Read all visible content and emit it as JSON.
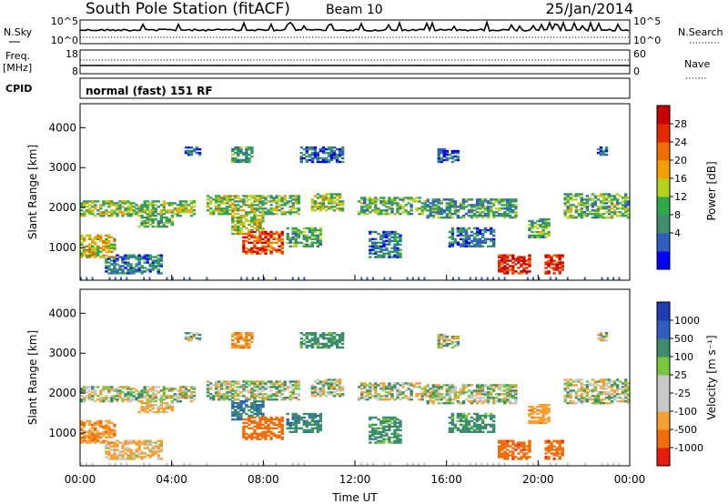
{
  "header": {
    "station": "South Pole Station (fitACF)",
    "beam": "Beam 10",
    "date": "25/Jan/2014"
  },
  "strips": {
    "nsky_label": "N.Sky",
    "nsearch_label": "N.Search",
    "noise_ticks": [
      "10^5",
      "10^0"
    ],
    "freq_label_1": "Freq.",
    "freq_label_2": "[MHz]",
    "freq_ticks": [
      "18",
      "8"
    ],
    "nave_label": "Nave",
    "nave_ticks": [
      "60",
      "0"
    ],
    "cpid_label": "CPID",
    "cpid_value": "normal (fast) 151 RF"
  },
  "colors": {
    "power": [
      "#0000ff",
      "#2e5fc0",
      "#3f8f6e",
      "#2ea84a",
      "#b4d21e",
      "#f5a000",
      "#f06e00",
      "#e62800",
      "#c80000"
    ],
    "velocity": [
      "#e81c0c",
      "#f06e0a",
      "#f5a030",
      "#c8c8c8",
      "#c8c8c8",
      "#78c83c",
      "#3c8c6e",
      "#2e5fc0",
      "#1e3cb4"
    ]
  },
  "chart_data": [
    {
      "type": "heatmap",
      "name": "power",
      "ylabel": "Slant Range [km]",
      "yticks": [
        "4000",
        "3000",
        "2000",
        "1000"
      ],
      "ylim": [
        180,
        4600
      ],
      "xlim": [
        0,
        24
      ],
      "colorbar_label": "Power [dB]",
      "colorbar_ticks": [
        "28",
        "24",
        "20",
        "16",
        "12",
        "8",
        "4"
      ],
      "colorbar_range": [
        0,
        32
      ]
    },
    {
      "type": "heatmap",
      "name": "velocity",
      "ylabel": "Slant Range [km]",
      "yticks": [
        "4000",
        "3000",
        "2000",
        "1000"
      ],
      "ylim": [
        180,
        4600
      ],
      "xlim": [
        0,
        24
      ],
      "colorbar_label": "Velocity [m s⁻¹]",
      "colorbar_ticks": [
        "1000",
        "500",
        "100",
        "25",
        "-25",
        "-100",
        "-500",
        "-1000"
      ]
    }
  ],
  "xaxis": {
    "ticks": [
      "00:00",
      "04:00",
      "08:00",
      "12:00",
      "16:00",
      "20:00",
      "00:00"
    ],
    "label": "Time UT"
  }
}
